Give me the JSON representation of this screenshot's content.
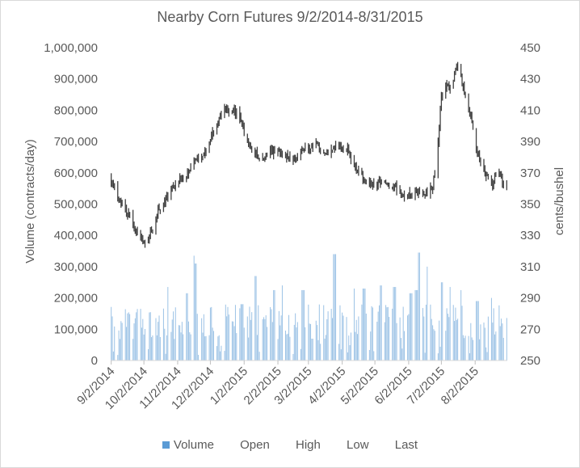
{
  "chart_data": {
    "type": "bar+candlestick",
    "title": "Nearby Corn Futures 9/2/2014-8/31/2015",
    "ylabel_left": "Volume (contracts/day)",
    "ylabel_right": "cents/bushel",
    "y_left": {
      "min": 0,
      "max": 1000000,
      "ticks": [
        "0",
        "100,000",
        "200,000",
        "300,000",
        "400,000",
        "500,000",
        "600,000",
        "700,000",
        "800,000",
        "900,000",
        "1,000,000"
      ]
    },
    "y_right": {
      "min": 250,
      "max": 450,
      "ticks": [
        "250",
        "270",
        "290",
        "310",
        "330",
        "350",
        "370",
        "390",
        "410",
        "430",
        "450"
      ]
    },
    "x_ticks": [
      "9/2/2014",
      "10/2/2014",
      "11/2/2014",
      "12/2/2014",
      "1/2/2015",
      "2/2/2015",
      "3/2/2015",
      "4/2/2015",
      "5/2/2015",
      "6/2/2015",
      "7/2/2015",
      "8/2/2015"
    ],
    "x_tick_days": [
      0,
      30,
      61,
      91,
      122,
      153,
      181,
      212,
      242,
      273,
      303,
      334
    ],
    "total_days": 363,
    "legend": [
      "Volume",
      "Open",
      "High",
      "Low",
      "Last"
    ],
    "colors": {
      "volume": "#9dc3e6",
      "volume_legend": "#5b9bd5",
      "price": "#404040"
    },
    "price_anchors": [
      [
        0,
        366
      ],
      [
        5,
        356
      ],
      [
        15,
        344
      ],
      [
        25,
        330
      ],
      [
        33,
        324
      ],
      [
        42,
        344
      ],
      [
        50,
        354
      ],
      [
        60,
        365
      ],
      [
        68,
        368
      ],
      [
        75,
        375
      ],
      [
        85,
        380
      ],
      [
        95,
        398
      ],
      [
        103,
        410
      ],
      [
        112,
        410
      ],
      [
        118,
        405
      ],
      [
        128,
        385
      ],
      [
        138,
        378
      ],
      [
        150,
        385
      ],
      [
        158,
        383
      ],
      [
        166,
        378
      ],
      [
        175,
        383
      ],
      [
        182,
        386
      ],
      [
        190,
        388
      ],
      [
        195,
        382
      ],
      [
        200,
        384
      ],
      [
        210,
        388
      ],
      [
        217,
        385
      ],
      [
        225,
        372
      ],
      [
        232,
        366
      ],
      [
        240,
        362
      ],
      [
        250,
        364
      ],
      [
        262,
        360
      ],
      [
        270,
        354
      ],
      [
        278,
        358
      ],
      [
        285,
        356
      ],
      [
        290,
        358
      ],
      [
        295,
        360
      ],
      [
        298,
        375
      ],
      [
        303,
        418
      ],
      [
        308,
        425
      ],
      [
        313,
        425
      ],
      [
        317,
        438
      ],
      [
        321,
        432
      ],
      [
        325,
        420
      ],
      [
        330,
        405
      ],
      [
        335,
        385
      ],
      [
        340,
        375
      ],
      [
        345,
        368
      ],
      [
        350,
        362
      ],
      [
        353,
        368
      ],
      [
        356,
        370
      ],
      [
        360,
        364
      ],
      [
        363,
        362
      ]
    ],
    "volume_spikes": [
      [
        53,
        235000
      ],
      [
        69,
        215000
      ],
      [
        75,
        335000
      ],
      [
        77,
        310000
      ],
      [
        120,
        180000
      ],
      [
        132,
        270000
      ],
      [
        150,
        225000
      ],
      [
        158,
        240000
      ],
      [
        176,
        225000
      ],
      [
        205,
        340000
      ],
      [
        222,
        230000
      ],
      [
        232,
        230000
      ],
      [
        248,
        240000
      ],
      [
        260,
        235000
      ],
      [
        275,
        215000
      ],
      [
        280,
        225000
      ],
      [
        283,
        345000
      ],
      [
        291,
        300000
      ],
      [
        304,
        250000
      ],
      [
        312,
        235000
      ],
      [
        320,
        225000
      ],
      [
        336,
        190000
      ],
      [
        348,
        200000
      ]
    ]
  }
}
